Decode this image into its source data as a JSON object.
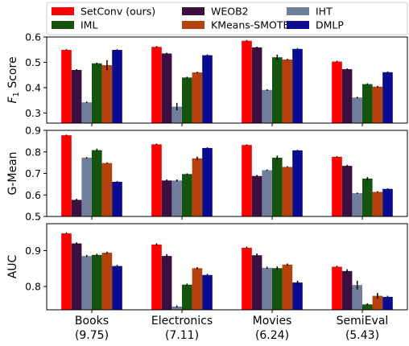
{
  "legend": {
    "placement": "top",
    "entries": [
      {
        "name": "SetConv (ours)",
        "color": "#ff0000"
      },
      {
        "name": "WEOB2",
        "color": "#3b0f3f"
      },
      {
        "name": "IHT",
        "color": "#6f7f9c"
      },
      {
        "name": "IML",
        "color": "#14540f"
      },
      {
        "name": "KMeans-SMOTE",
        "color": "#b5420c"
      },
      {
        "name": "DMLP",
        "color": "#0b0b8f"
      }
    ]
  },
  "categories": [
    "Books",
    "Electronics",
    "Movies",
    "SemiEval"
  ],
  "category_values": [
    "(9.75)",
    "(7.11)",
    "(6.24)",
    "(5.43)"
  ],
  "chart_data": [
    {
      "type": "bar",
      "ylabel": "F1 Score",
      "ylabel_main": "F",
      "ylabel_sub": "1",
      "ylabel_rest": " Score",
      "ylim": [
        0.26,
        0.6
      ],
      "yticks": [
        "0.3",
        "0.4",
        "0.5",
        "0.6"
      ],
      "ytick_values": [
        0.3,
        0.4,
        0.5,
        0.6
      ],
      "series": [
        {
          "name": "SetConv (ours)",
          "values": [
            0.549,
            0.561,
            0.585,
            0.503
          ],
          "errors": [
            0,
            0,
            0,
            0
          ]
        },
        {
          "name": "WEOB2",
          "values": [
            0.47,
            0.535,
            0.559,
            0.473
          ],
          "errors": [
            0,
            0,
            0,
            0
          ]
        },
        {
          "name": "IHT",
          "values": [
            0.342,
            0.325,
            0.391,
            0.361
          ],
          "errors": [
            0,
            0.015,
            0,
            0
          ]
        },
        {
          "name": "IML",
          "values": [
            0.496,
            0.44,
            0.52,
            0.414
          ],
          "errors": [
            0,
            0,
            0.01,
            0
          ]
        },
        {
          "name": "KMeans-SMOTE",
          "values": [
            0.489,
            0.46,
            0.511,
            0.404
          ],
          "errors": [
            0.02,
            0,
            0,
            0
          ]
        },
        {
          "name": "DMLP",
          "values": [
            0.549,
            0.528,
            0.553,
            0.461
          ],
          "errors": [
            0,
            0,
            0,
            0
          ]
        }
      ]
    },
    {
      "type": "bar",
      "ylabel": "G-Mean",
      "ylim": [
        0.5,
        0.9
      ],
      "yticks": [
        "0.5",
        "0.6",
        "0.7",
        "0.8",
        "0.9"
      ],
      "ytick_values": [
        0.5,
        0.6,
        0.7,
        0.8,
        0.9
      ],
      "series": [
        {
          "name": "SetConv (ours)",
          "values": [
            0.877,
            0.835,
            0.832,
            0.777
          ],
          "errors": [
            0,
            0,
            0,
            0
          ]
        },
        {
          "name": "WEOB2",
          "values": [
            0.577,
            0.667,
            0.688,
            0.735
          ],
          "errors": [
            0.005,
            0.005,
            0.005,
            0.005
          ]
        },
        {
          "name": "IHT",
          "values": [
            0.773,
            0.667,
            0.715,
            0.608
          ],
          "errors": [
            0,
            0.005,
            0,
            0
          ]
        },
        {
          "name": "IML",
          "values": [
            0.808,
            0.697,
            0.773,
            0.676
          ],
          "errors": [
            0.007,
            0,
            0.01,
            0.007
          ]
        },
        {
          "name": "KMeans-SMOTE",
          "values": [
            0.748,
            0.77,
            0.73,
            0.614
          ],
          "errors": [
            0,
            0.008,
            0,
            0
          ]
        },
        {
          "name": "DMLP",
          "values": [
            0.661,
            0.818,
            0.807,
            0.628
          ],
          "errors": [
            0,
            0,
            0,
            0
          ]
        }
      ]
    },
    {
      "type": "bar",
      "ylabel": "AUC",
      "ylim": [
        0.735,
        0.975
      ],
      "yticks": [
        "0.8",
        "0.9"
      ],
      "ytick_values": [
        0.8,
        0.9
      ],
      "series": [
        {
          "name": "SetConv (ours)",
          "values": [
            0.948,
            0.917,
            0.908,
            0.855
          ],
          "errors": [
            0,
            0,
            0,
            0
          ]
        },
        {
          "name": "WEOB2",
          "values": [
            0.92,
            0.885,
            0.887,
            0.843
          ],
          "errors": [
            0,
            0.005,
            0.005,
            0.005
          ]
        },
        {
          "name": "IHT",
          "values": [
            0.885,
            0.744,
            0.852,
            0.804
          ],
          "errors": [
            0,
            0,
            0,
            0.012
          ]
        },
        {
          "name": "IML",
          "values": [
            0.888,
            0.805,
            0.851,
            0.75
          ],
          "errors": [
            0,
            0,
            0.005,
            0
          ]
        },
        {
          "name": "KMeans-SMOTE",
          "values": [
            0.894,
            0.851,
            0.861,
            0.774
          ],
          "errors": [
            0,
            0,
            0,
            0.008
          ]
        },
        {
          "name": "DMLP",
          "values": [
            0.857,
            0.832,
            0.811,
            0.771
          ],
          "errors": [
            0,
            0,
            0.005,
            0
          ]
        }
      ]
    }
  ]
}
